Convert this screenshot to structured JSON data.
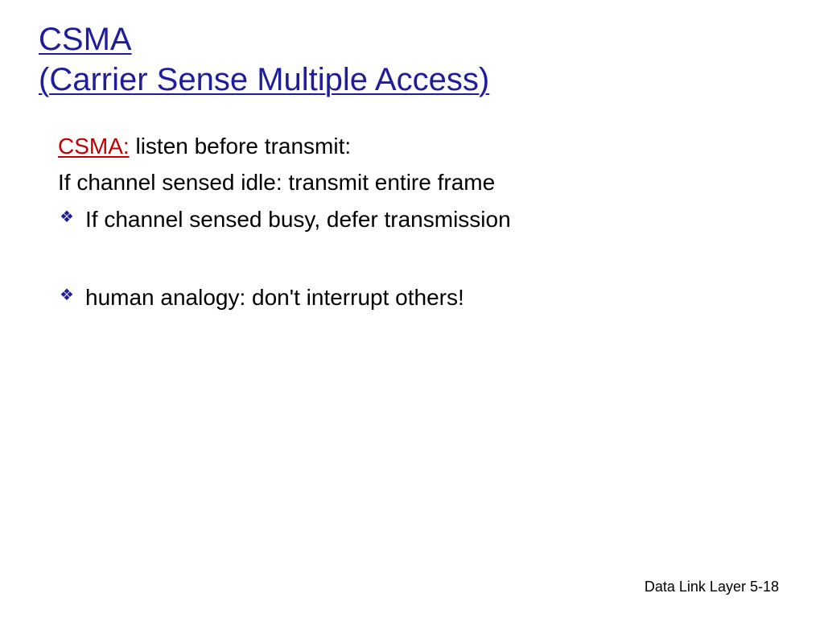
{
  "colors": {
    "title": "#1d1d9e",
    "body": "#000000",
    "label": "#c00000",
    "bullet": "#1d1d9e",
    "footer": "#000000",
    "background": "#ffffff"
  },
  "title": {
    "line1": "CSMA",
    "line2": "(Carrier Sense Multiple Access)",
    "fontsize": 40
  },
  "body": {
    "fontsize": 28,
    "lead": {
      "label": "CSMA:",
      "rest": " listen before transmit:"
    },
    "plain": "If channel sensed idle: transmit entire frame",
    "bullets": [
      "If channel sensed busy, defer transmission",
      "human analogy: don't interrupt others!"
    ],
    "bullet_marker": "❖"
  },
  "footer": {
    "text": "Data Link Layer  5-18",
    "fontsize": 18
  }
}
